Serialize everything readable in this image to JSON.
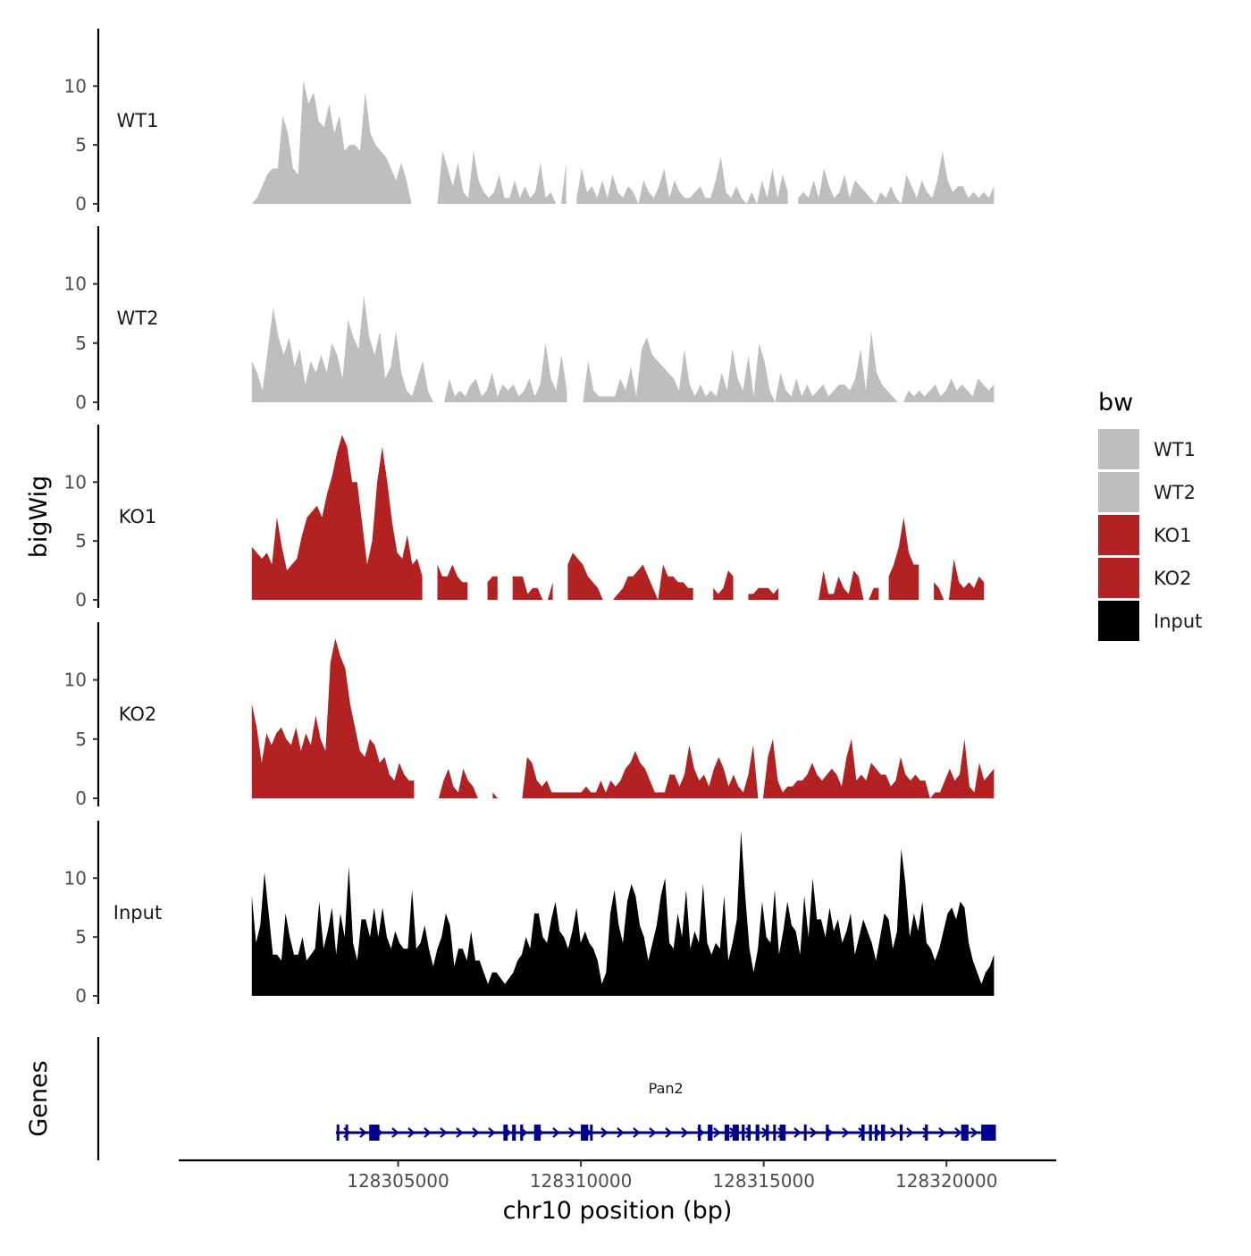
{
  "chart_data": {
    "type": "area",
    "chromosome": "chr10",
    "xlabel": "chr10 position (bp)",
    "ylabel": "bigWig",
    "genes_label": "Genes",
    "x_range": [
      128301000,
      128321300
    ],
    "x_axis_limits": [
      128299000,
      128323000
    ],
    "x_ticks": [
      128305000,
      128310000,
      128315000,
      128320000
    ],
    "x_tick_labels": [
      "128305000",
      "128310000",
      "128315000",
      "128320000"
    ],
    "y_range": [
      0,
      14.5
    ],
    "y_ticks": [
      0,
      5,
      10
    ],
    "y_tick_labels": [
      "0",
      "5",
      "10"
    ],
    "legend": {
      "title": "bw",
      "placement": "right",
      "entries": [
        {
          "label": "WT1",
          "color": "#bebebe"
        },
        {
          "label": "WT2",
          "color": "#bebebe"
        },
        {
          "label": "KO1",
          "color": "#b22222"
        },
        {
          "label": "KO2",
          "color": "#b22222"
        },
        {
          "label": "Input",
          "color": "#000000"
        }
      ]
    },
    "series": [
      {
        "name": "WT1",
        "color": "#bebebe",
        "values": [
          0,
          0.5,
          1.5,
          2.5,
          3,
          3,
          7.5,
          6,
          3,
          2.5,
          10.5,
          8.5,
          9.5,
          7,
          6.5,
          8.5,
          6,
          7.5,
          4.5,
          5,
          5,
          4.5,
          9.5,
          6,
          5,
          4.5,
          4,
          3,
          2,
          3.5,
          2,
          0,
          0,
          0,
          1,
          0,
          0,
          4.5,
          3,
          1.5,
          3.5,
          1,
          0.5,
          4.5,
          2,
          1,
          0.5,
          1,
          2.5,
          0.5,
          0.5,
          2,
          0.5,
          1.5,
          0.5,
          1,
          3.5,
          0.5,
          1,
          0,
          0,
          3.5,
          2,
          0.5,
          3,
          1,
          1.5,
          0.5,
          2,
          0.5,
          2.5,
          1,
          0.5,
          1.5,
          1,
          0,
          2,
          1,
          0.5,
          1.5,
          3,
          0.5,
          2,
          1,
          0.5,
          0.5,
          1,
          1.5,
          0.5,
          0.5,
          2,
          4,
          1,
          0.5,
          1.5,
          0.5,
          0,
          1,
          0,
          2,
          0.5,
          3,
          0.5,
          2.5,
          1,
          1,
          0.5,
          1,
          0.5,
          2,
          0.5,
          3,
          1.5,
          0.5,
          1,
          2.5,
          0.5,
          2,
          1.5,
          1,
          0.5,
          0,
          1,
          0.5,
          1.5,
          0.5,
          0,
          2.5,
          1.5,
          0.5,
          2,
          1,
          0.5,
          2,
          4.5,
          2,
          1,
          1.5,
          1.5,
          0.5,
          1,
          0.5,
          1,
          0.5,
          1.5
        ],
        "gaps": [
          [
            128305720,
            128306000
          ],
          [
            128309650,
            128309750
          ],
          [
            128315800,
            128315850
          ],
          [
            128318500,
            128318600
          ]
        ]
      },
      {
        "name": "WT2",
        "color": "#bebebe",
        "values": [
          3.5,
          2.5,
          1,
          4.5,
          8,
          5.5,
          4,
          5.5,
          3,
          4.5,
          1.5,
          3.5,
          2.5,
          4,
          2.5,
          5,
          4,
          2,
          7,
          5.5,
          4.5,
          9,
          5.5,
          4,
          6,
          2,
          3,
          6,
          2.5,
          1,
          0.5,
          2,
          3.5,
          1,
          0,
          0,
          0,
          2,
          0.5,
          1,
          0.5,
          1.5,
          2,
          0.5,
          1,
          2.5,
          0.5,
          1.5,
          1,
          1.5,
          0.5,
          1,
          2,
          0.5,
          1.5,
          5,
          2,
          1,
          4,
          1,
          0.5,
          0,
          0,
          3.5,
          1,
          0.5,
          0.5,
          0.5,
          0.5,
          2,
          1,
          3,
          0.5,
          4.5,
          5.5,
          4,
          3.5,
          3,
          2.5,
          2,
          1,
          4.5,
          1.5,
          0.5,
          1.5,
          0.5,
          1,
          0.5,
          2.5,
          1,
          4.5,
          2,
          1,
          4,
          0.5,
          5,
          3.5,
          1,
          0,
          2.5,
          1,
          0.5,
          2,
          0.5,
          1.5,
          0.5,
          1,
          1.5,
          0.5,
          1,
          1.5,
          1.5,
          1,
          2,
          4.5,
          1,
          6,
          2.5,
          1.5,
          1,
          0.5,
          0,
          0,
          1,
          0.5,
          1,
          0.5,
          1,
          1.5,
          0.5,
          1,
          2,
          1,
          1.5,
          1,
          0.5,
          2,
          1.5,
          1,
          1.5
        ],
        "gaps": [
          [
            128306100,
            128306200
          ],
          [
            128309700,
            128309800
          ],
          [
            128315900,
            128316000
          ],
          [
            128320000,
            128320100
          ]
        ]
      },
      {
        "name": "KO1",
        "color": "#b22222",
        "values": [
          4.5,
          4,
          3.5,
          4,
          3,
          7,
          4.5,
          2.5,
          3,
          3.5,
          5.5,
          7,
          7.5,
          8,
          7,
          9,
          10.5,
          12.5,
          14,
          13,
          10,
          10,
          6.5,
          3,
          5,
          10,
          13,
          10,
          6.5,
          4,
          3.5,
          5.5,
          3,
          3.5,
          2,
          2,
          2,
          3,
          2,
          2,
          3,
          2,
          1.5,
          1.5,
          1,
          0,
          0,
          1.5,
          2,
          2,
          1.5,
          2.5,
          2,
          2,
          2,
          0.5,
          1,
          1,
          0,
          0,
          1.5,
          1,
          1,
          3,
          4,
          3.5,
          3,
          2,
          1.5,
          1,
          0,
          0,
          0,
          0.5,
          1,
          2,
          2,
          2.5,
          3,
          2,
          1,
          0,
          3,
          2,
          2,
          1.5,
          1.5,
          1,
          1,
          1.5,
          1.5,
          0.5,
          1,
          0.5,
          1,
          2.5,
          2,
          1,
          1,
          0.5,
          0.5,
          1,
          1,
          1,
          0.5,
          1,
          0.5,
          0,
          0,
          0,
          0,
          0,
          0,
          0,
          2.5,
          0.5,
          0.5,
          2,
          1,
          0.5,
          2.5,
          2,
          0,
          0,
          1,
          1,
          0.5,
          2,
          3,
          4.5,
          7,
          4,
          3,
          3,
          3.5,
          2.5,
          1.5,
          1,
          0,
          0,
          3.5,
          1.5,
          1,
          1.5,
          1,
          2,
          1.5,
          2.5,
          3
        ],
        "gaps": [
          [
            128305760,
            128305950
          ],
          [
            128307000,
            128307350
          ],
          [
            128307800,
            128308100
          ],
          [
            128309250,
            128309600
          ],
          [
            128313150,
            128313500
          ],
          [
            128314200,
            128314450
          ],
          [
            128315450,
            128315750
          ],
          [
            128318150,
            128318350
          ],
          [
            128319350,
            128319600
          ],
          [
            128321050,
            128321300
          ]
        ]
      },
      {
        "name": "KO2",
        "color": "#b22222",
        "values": [
          8,
          6,
          3,
          5.5,
          4.5,
          5.5,
          6,
          5,
          4.5,
          6,
          4,
          5.5,
          4.5,
          7,
          5,
          4,
          11.5,
          13.5,
          12,
          11,
          8,
          6,
          4,
          3.5,
          5,
          4.5,
          3,
          3.5,
          2,
          1.5,
          3,
          2,
          1.5,
          1.5,
          1,
          0,
          0,
          0,
          0,
          1.5,
          2.5,
          1,
          0.5,
          2.5,
          1.5,
          1,
          0,
          0,
          2.5,
          0.5,
          0,
          1.5,
          1.5,
          0,
          0,
          0,
          3.5,
          3,
          1.5,
          1,
          1.5,
          0.5,
          0.5,
          0.5,
          0.5,
          0.5,
          0.5,
          0.5,
          1,
          0.5,
          0.5,
          1.5,
          0.5,
          1.5,
          1,
          1.5,
          2.5,
          3,
          4,
          3,
          2.5,
          1.5,
          0.5,
          0.5,
          0.5,
          2,
          2,
          1,
          2,
          4.5,
          2.5,
          1.5,
          2,
          1,
          2.5,
          3.5,
          2.5,
          1,
          2,
          1,
          0.5,
          2,
          4.5,
          0,
          0,
          3.5,
          5,
          1.5,
          0.5,
          1,
          1,
          1.5,
          1.5,
          2,
          3,
          2,
          1.5,
          2,
          2.5,
          2,
          1,
          3.5,
          5,
          1.5,
          2,
          1.5,
          3,
          2.5,
          2,
          2,
          1,
          1.5,
          3.5,
          2,
          1.5,
          2,
          1.5,
          1.5,
          0,
          0.5,
          0.5,
          1.5,
          2.5,
          1.5,
          2,
          5,
          1,
          0.5,
          3,
          1.5,
          2,
          2.5
        ],
        "gaps": [
          [
            128305550,
            128305850
          ],
          [
            128307200,
            128307500
          ],
          [
            128307800,
            128308000
          ]
        ]
      },
      {
        "name": "Input",
        "color": "#000000",
        "values": [
          8.5,
          4.5,
          6,
          10.5,
          7,
          3.5,
          3.5,
          3,
          7,
          5,
          3.5,
          3.5,
          5,
          3,
          3.5,
          4,
          8,
          4,
          5.5,
          7.5,
          3.5,
          7,
          5,
          11,
          4.5,
          3,
          6.5,
          6.5,
          5,
          7.5,
          5,
          7.5,
          5,
          4,
          5.5,
          4.5,
          4,
          4,
          9,
          4,
          4.5,
          6,
          4,
          2.5,
          4,
          5,
          7,
          6,
          2.5,
          4,
          4,
          3,
          5.5,
          3,
          3,
          2,
          1,
          2,
          2,
          1.5,
          1,
          1.5,
          2,
          3,
          3.5,
          5,
          4,
          7,
          7,
          5,
          4.5,
          6.5,
          8,
          5.5,
          5,
          4,
          5.5,
          7.5,
          4.5,
          5.5,
          4.5,
          4,
          3,
          1,
          2,
          7,
          9,
          6,
          4.5,
          8,
          9.5,
          8.5,
          6,
          5,
          3,
          4.5,
          6,
          8.5,
          10,
          4.5,
          4,
          7,
          5,
          9,
          4,
          5.5,
          4.5,
          9.5,
          4.5,
          3.5,
          4.5,
          4,
          8.5,
          3,
          4.5,
          6.5,
          14,
          8.5,
          4,
          2,
          4,
          8,
          5,
          4.5,
          9,
          3.5,
          5.5,
          8,
          6,
          5.5,
          3.5,
          8.5,
          5,
          10,
          6.5,
          6.5,
          5,
          7.5,
          5.5,
          6.5,
          4.5,
          5.5,
          7,
          3.5,
          5,
          6.5,
          5.5,
          4.5,
          3,
          5,
          7,
          6.5,
          4,
          5.5,
          12.5,
          9.5,
          5,
          7,
          5.5,
          8,
          4.5,
          4,
          3,
          4,
          5.5,
          7,
          7.5,
          6.5,
          8,
          7.5,
          4.5,
          3,
          2,
          1,
          2,
          2.5,
          3.5
        ]
      }
    ],
    "genes": [
      {
        "name": "Pan2",
        "strand": "+",
        "start": 128303300,
        "end": 128321350,
        "exons": [
          [
            128303320,
            128303390
          ],
          [
            128303560,
            128303620
          ],
          [
            128304210,
            128304490
          ],
          [
            128307880,
            128308000
          ],
          [
            128308120,
            128308220
          ],
          [
            128308340,
            128308420
          ],
          [
            128308720,
            128308900
          ],
          [
            128310000,
            128310200
          ],
          [
            128310250,
            128310320
          ],
          [
            128313200,
            128313280
          ],
          [
            128313470,
            128313600
          ],
          [
            128313930,
            128314060
          ],
          [
            128314150,
            128314320
          ],
          [
            128314400,
            128314480
          ],
          [
            128314560,
            128314640
          ],
          [
            128314780,
            128314880
          ],
          [
            128315060,
            128315140
          ],
          [
            128315260,
            128315320
          ],
          [
            128315440,
            128315600
          ],
          [
            128316100,
            128316160
          ],
          [
            128316700,
            128316780
          ],
          [
            128317670,
            128317760
          ],
          [
            128317880,
            128317960
          ],
          [
            128318040,
            128318110
          ],
          [
            128318210,
            128318320
          ],
          [
            128318720,
            128318800
          ],
          [
            128319410,
            128319490
          ],
          [
            128320400,
            128320600
          ],
          [
            128320950,
            128321350
          ]
        ]
      }
    ]
  }
}
